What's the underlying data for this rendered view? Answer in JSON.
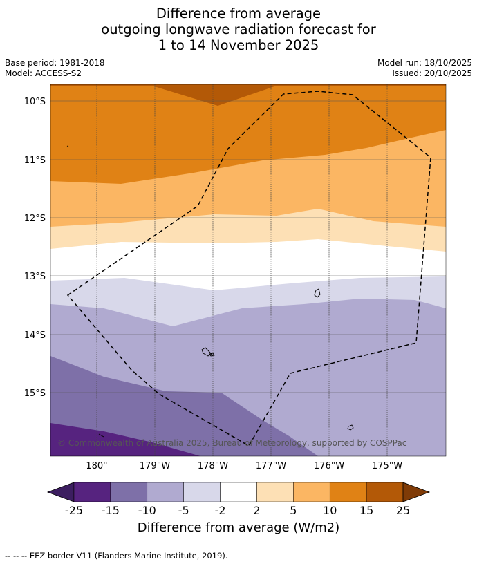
{
  "title": {
    "line1": "Difference from average",
    "line2": "outgoing longwave radiation forecast for",
    "line3": "1 to 14 November 2025"
  },
  "meta": {
    "base_period": "Base period: 1981-2018",
    "model": "Model: ACCESS-S2",
    "model_run": "Model run: 18/10/2025",
    "issued": "Issued: 20/10/2025"
  },
  "map": {
    "x_ticks": [
      "180°",
      "179°W",
      "178°W",
      "177°W",
      "176°W",
      "175°W"
    ],
    "y_ticks": [
      "10°S",
      "11°S",
      "12°S",
      "13°S",
      "14°S",
      "15°S"
    ],
    "copyright": "© Commonwealth of Australia 2025, Bureau of Meteorology, supported by COSPPac"
  },
  "colorbar": {
    "labels": [
      "-25",
      "-15",
      "-10",
      "-5",
      "-2",
      "2",
      "5",
      "10",
      "15",
      "25"
    ],
    "colors": [
      "#3c1e60",
      "#56237f",
      "#7e70a8",
      "#b0aad0",
      "#d8d8ea",
      "#ffffff",
      "#fde0b5",
      "#fbb663",
      "#e08215",
      "#b35907",
      "#7f3b07"
    ],
    "title": "Difference from average (W/m2)"
  },
  "footer": "--  --  -- EEZ border V11 (Flanders Marine Institute, 2019)."
}
